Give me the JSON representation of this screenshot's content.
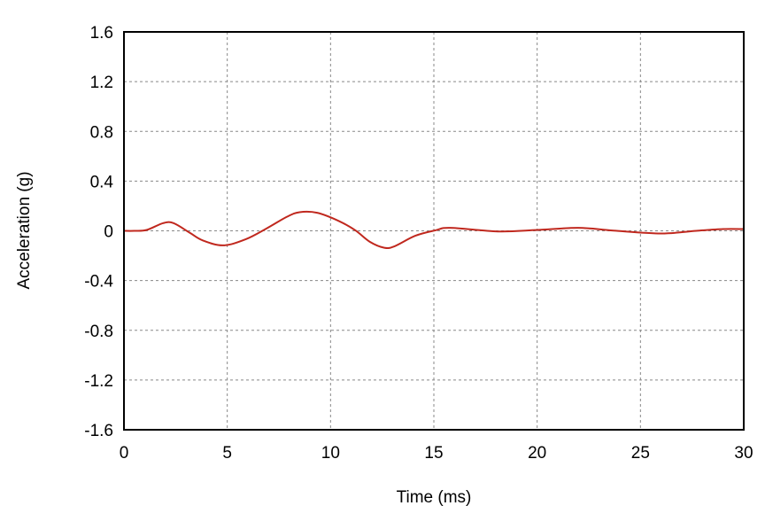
{
  "chart_data": {
    "type": "line",
    "title": "",
    "xlabel": "Time (ms)",
    "ylabel": "Acceleration (g)",
    "xlim": [
      0,
      30
    ],
    "ylim": [
      -1.6,
      1.6
    ],
    "xticks": [
      0,
      5,
      10,
      15,
      20,
      25,
      30
    ],
    "yticks": [
      1.6,
      1.2,
      0.8,
      0.4,
      0,
      -0.4,
      -0.8,
      -1.2,
      -1.6
    ],
    "ytick_labels": [
      "1.6",
      "1.2",
      "0.8",
      "0.4",
      "0",
      "-0.4",
      "-0.8",
      "-1.2",
      "-1.6"
    ],
    "grid": true,
    "grid_style": "dashed",
    "colors": {
      "line": "#c0281e",
      "grid": "#888888",
      "frame": "#000000"
    },
    "series": [
      {
        "x": [
          0,
          0.5,
          1.1,
          1.9,
          2.4,
          3.2,
          3.8,
          4.8,
          5.9,
          6.9,
          7.9,
          8.5,
          9.35,
          10.4,
          11.2,
          11.9,
          12.6,
          13.1,
          14.1,
          15.1,
          15.8,
          18.1,
          20.0,
          22.0,
          23.7,
          26.0,
          27.7,
          29.0,
          30.0
        ],
        "y": [
          0,
          0,
          0.007,
          0.062,
          0.062,
          -0.017,
          -0.076,
          -0.117,
          -0.067,
          0.019,
          0.114,
          0.15,
          0.145,
          0.079,
          0.004,
          -0.088,
          -0.136,
          -0.124,
          -0.04,
          0.005,
          0.024,
          -0.005,
          0.007,
          0.024,
          0.002,
          -0.021,
          0,
          0.014,
          0.014
        ]
      }
    ]
  }
}
